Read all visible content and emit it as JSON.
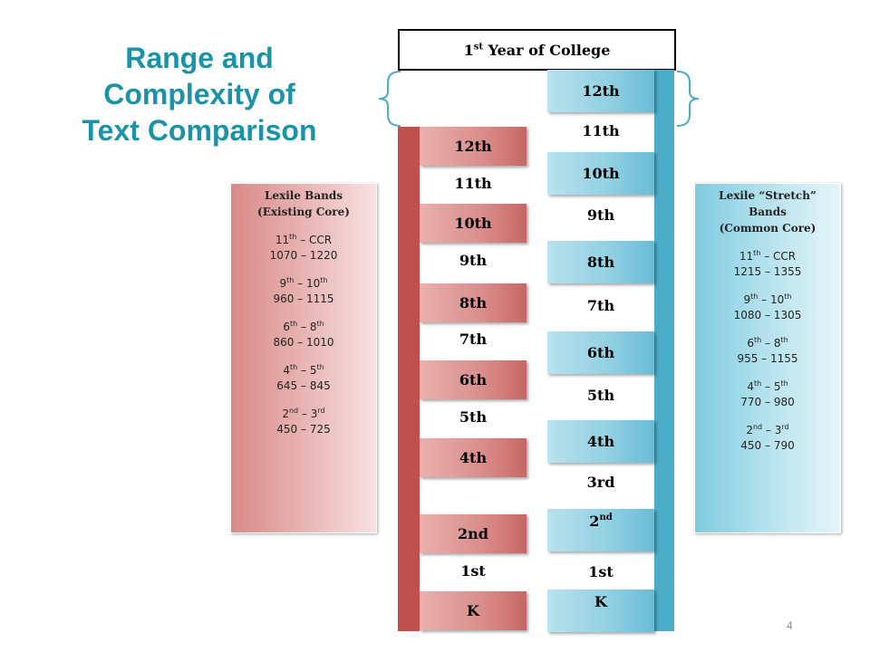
{
  "title": {
    "line1": "Range and",
    "line2": "Complexity of",
    "line3": "Text Comparison"
  },
  "college": {
    "label": "1",
    "sup": "st",
    "rest": " Year of College"
  },
  "red_column": {
    "boxes": [
      "12th",
      "10th",
      "8th",
      "6th",
      "4th",
      "2nd",
      "K"
    ],
    "plain": [
      "11th",
      "9th",
      "7th",
      "5th",
      "1st"
    ]
  },
  "blue_column": {
    "boxes": [
      "12th",
      "10th",
      "8th",
      "6th",
      "4th",
      "2",
      "K"
    ],
    "box_2nd_sup": "nd",
    "plain": [
      "11th",
      "9th",
      "7th",
      "5th",
      "3rd",
      "1st"
    ]
  },
  "left_panel": {
    "heading1": "Lexile Bands",
    "heading2": "(Existing Core)",
    "groups": [
      {
        "a": "11",
        "a_sup": "th",
        "b": " – CCR",
        "b_sup": "",
        "range": "1070 – 1220"
      },
      {
        "a": "9",
        "a_sup": "th",
        "b": " – 10",
        "b_sup": "th",
        "range": "960 – 1115"
      },
      {
        "a": "6",
        "a_sup": "th",
        "b": " – 8",
        "b_sup": "th",
        "range": "860 – 1010"
      },
      {
        "a": "4",
        "a_sup": "th",
        "b": " – 5",
        "b_sup": "th",
        "range": "645 – 845"
      },
      {
        "a": "2",
        "a_sup": "nd",
        "b": " – 3",
        "b_sup": "rd",
        "range": "450 – 725"
      }
    ]
  },
  "right_panel": {
    "heading1": "Lexile “Stretch”",
    "heading2": "Bands",
    "heading3": "(Common Core)",
    "groups": [
      {
        "a": "11",
        "a_sup": "th",
        "b": " – CCR",
        "b_sup": "",
        "range": "1215 – 1355"
      },
      {
        "a": "9",
        "a_sup": "th",
        "b": " – 10",
        "b_sup": "th",
        "range": "1080 – 1305"
      },
      {
        "a": "6",
        "a_sup": "th",
        "b": " – 8",
        "b_sup": "th",
        "range": "955 – 1155"
      },
      {
        "a": "4",
        "a_sup": "th",
        "b": " – 5",
        "b_sup": "th",
        "range": "770 – 980"
      },
      {
        "a": "2",
        "a_sup": "nd",
        "b": " – 3",
        "b_sup": "rd",
        "range": "450 – 790"
      }
    ]
  },
  "page_number": "4",
  "colors": {
    "title": "#1b93a7",
    "red_bar": "#c0504d",
    "blue_bar": "#4bacc6"
  }
}
